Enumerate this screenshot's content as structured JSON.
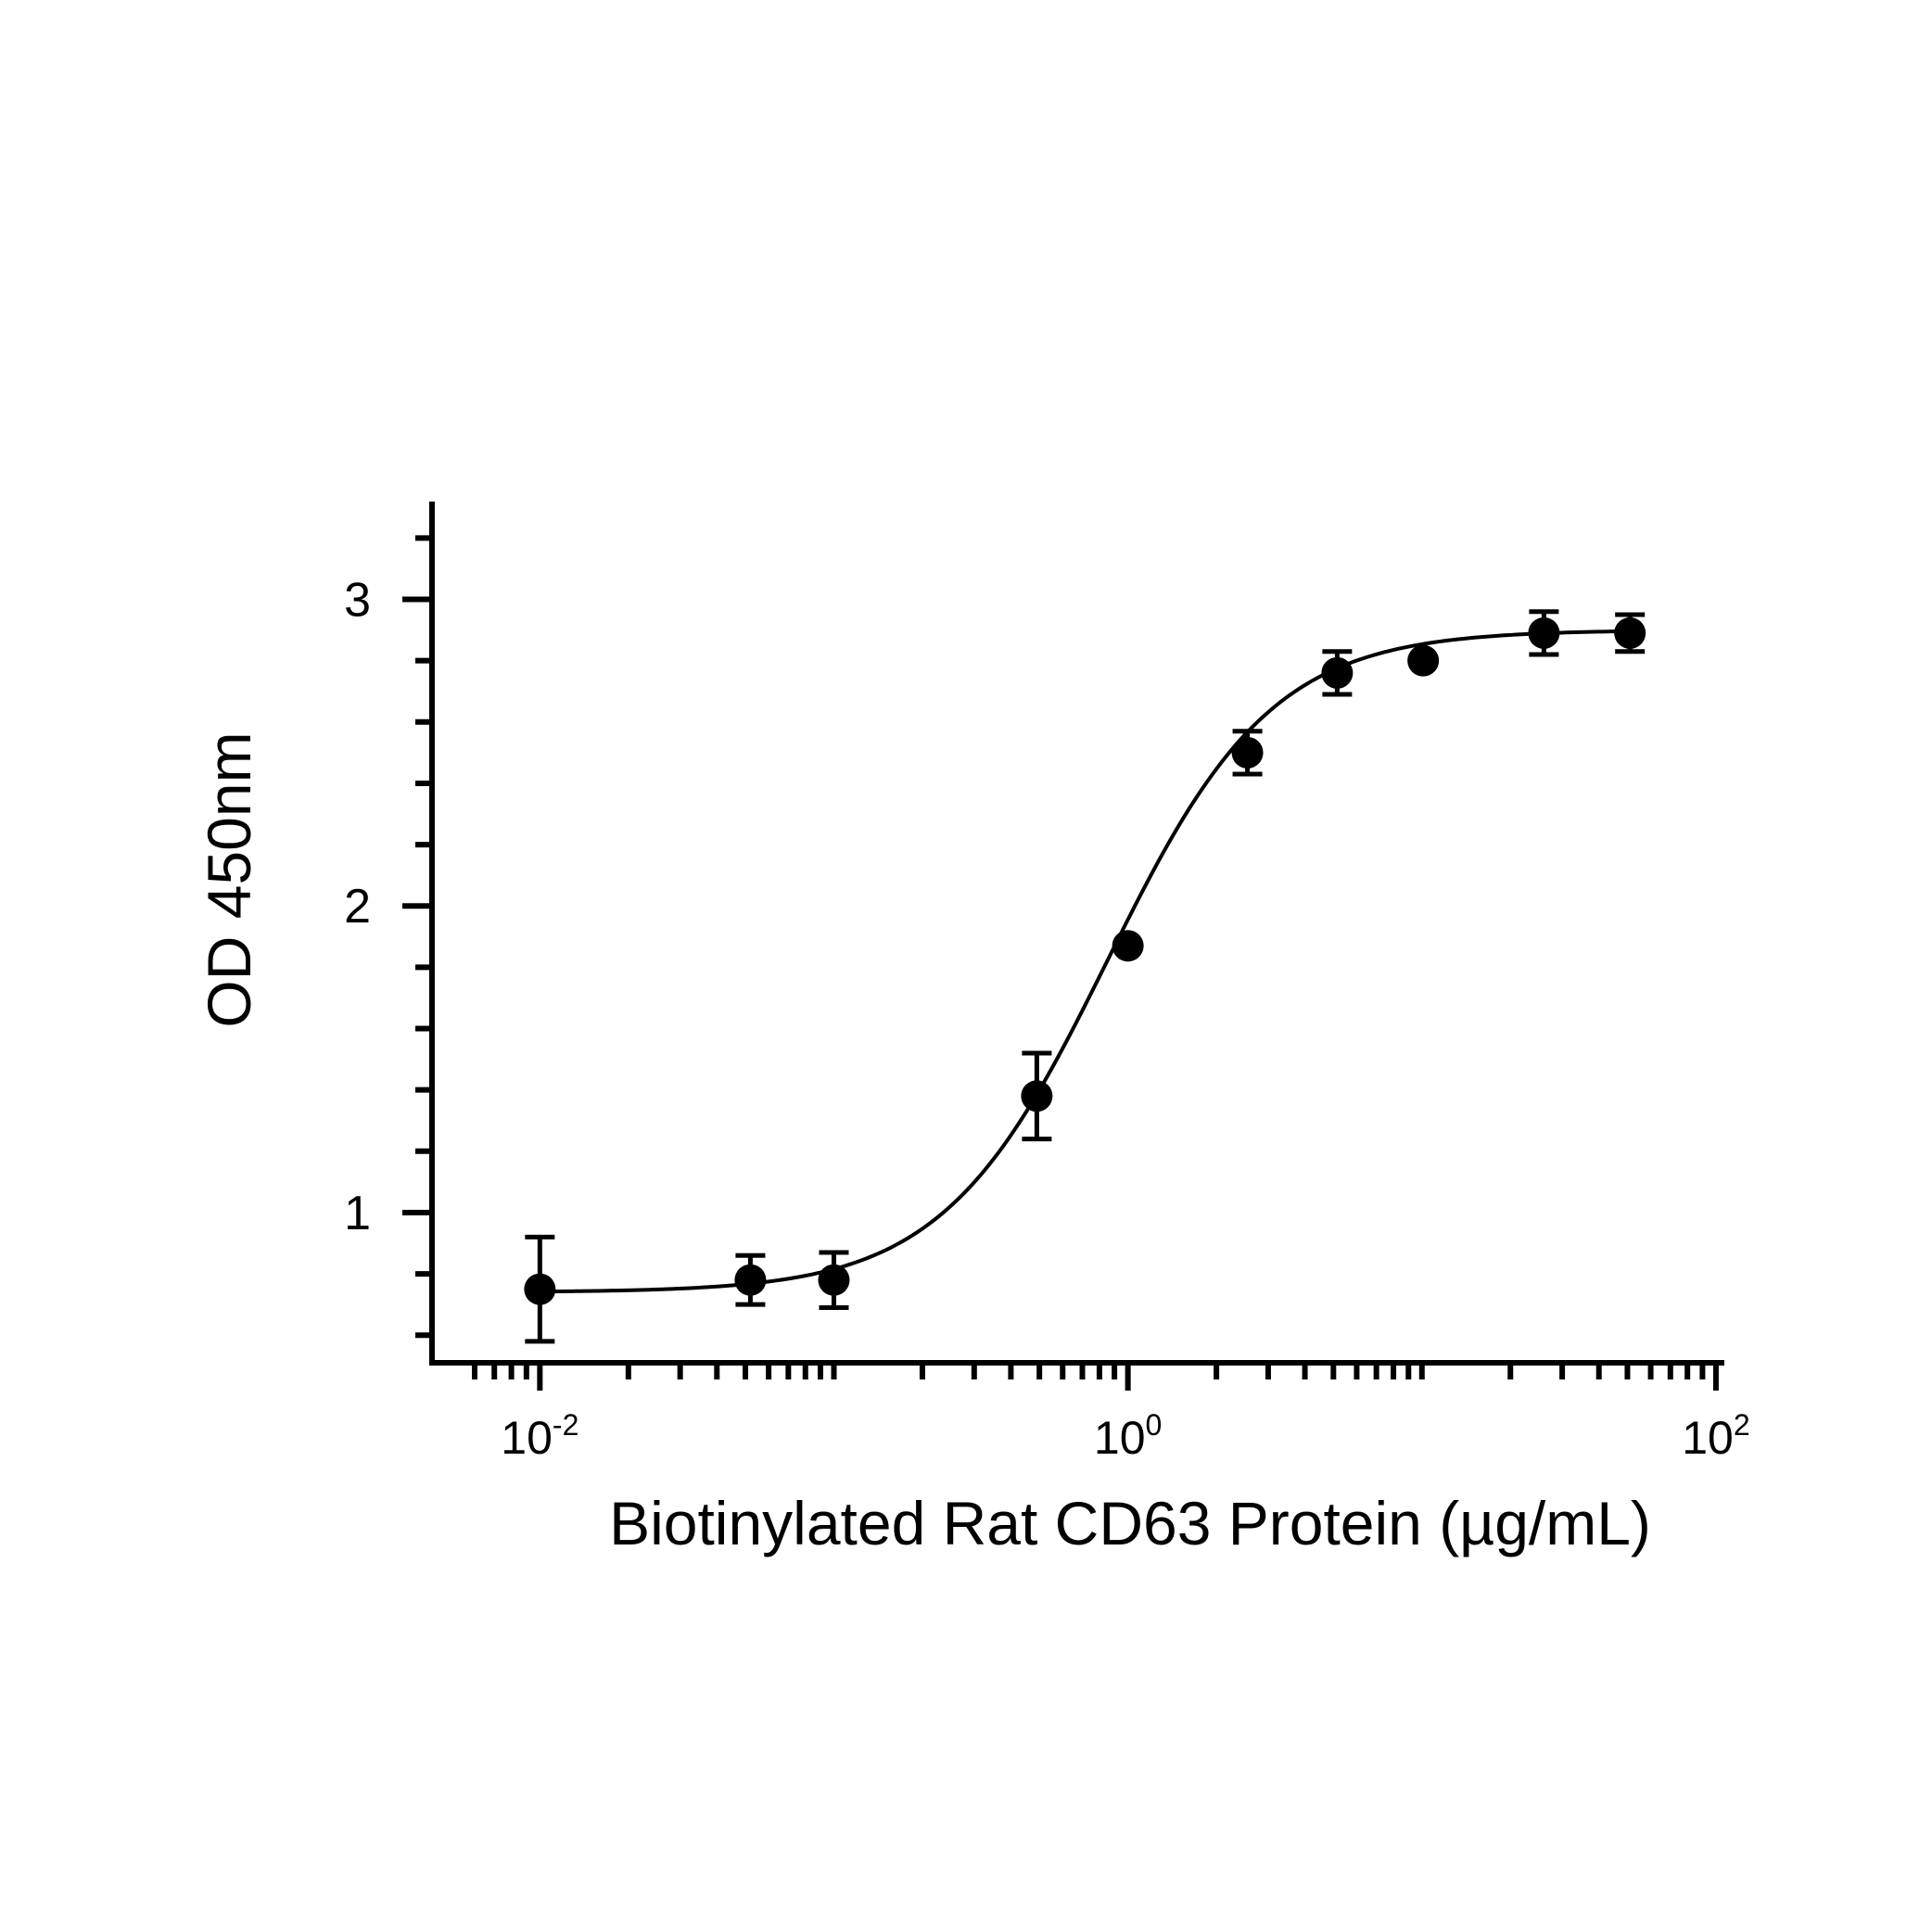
{
  "chart_data": {
    "type": "scatter",
    "xlabel": "Biotinylated Rat CD63 Protein (µg/mL)",
    "ylabel": "OD 450nm",
    "x_scale": "log",
    "xlim": [
      0.0055,
      103
    ],
    "ylim": [
      0.51,
      3.31
    ],
    "grid": false,
    "legend": "none",
    "x_ticks": [
      {
        "value": 0.01,
        "base": "10",
        "exp": "-2"
      },
      {
        "value": 1,
        "base": "10",
        "exp": "0"
      },
      {
        "value": 100,
        "base": "10",
        "exp": "2"
      }
    ],
    "y_ticks": [
      1,
      2,
      3
    ],
    "series": [
      {
        "points": [
          {
            "x": 0.01,
            "y": 0.75,
            "err": 0.17
          },
          {
            "x": 0.052,
            "y": 0.78,
            "err": 0.08
          },
          {
            "x": 0.1,
            "y": 0.78,
            "err": 0.09
          },
          {
            "x": 0.49,
            "y": 1.38,
            "err": 0.14
          },
          {
            "x": 1.0,
            "y": 1.87,
            "err": 0
          },
          {
            "x": 2.55,
            "y": 2.5,
            "err": 0.07
          },
          {
            "x": 5.15,
            "y": 2.76,
            "err": 0.07
          },
          {
            "x": 10.1,
            "y": 2.8,
            "err": 0
          },
          {
            "x": 26.0,
            "y": 2.89,
            "err": 0.07
          },
          {
            "x": 51.0,
            "y": 2.89,
            "err": 0.06
          }
        ],
        "fit": {
          "model": "4PL",
          "bottom": 0.74,
          "top": 2.9,
          "ec50": 0.85,
          "hill": 1.55
        }
      }
    ]
  }
}
